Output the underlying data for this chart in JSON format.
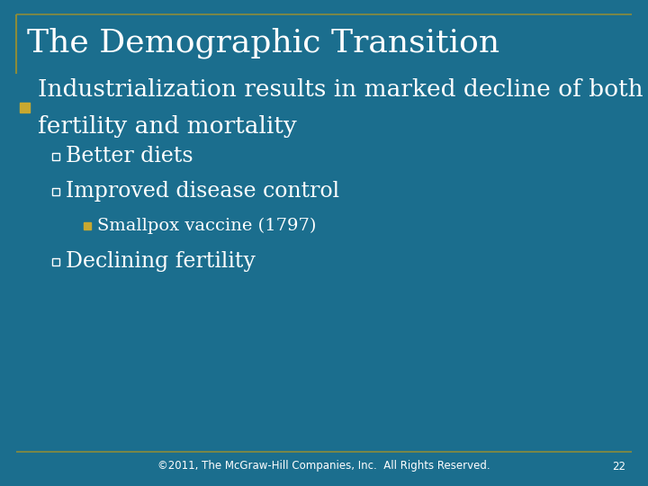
{
  "title": "The Demographic Transition",
  "background_color": "#1B6E8E",
  "title_color": "#FFFFFF",
  "text_color": "#FFFFFF",
  "accent_color": "#8B8B3A",
  "footer_text": "©2011, The McGraw-Hill Companies, Inc.  All Rights Reserved.",
  "page_number": "22",
  "bullet1_marker_color": "#C8A830",
  "bullet1_text_line1": "Industrialization results in marked decline of both",
  "bullet1_text_line2": "fertility and mortality",
  "sub_bullet1": "Better diets",
  "sub_bullet2": "Improved disease control",
  "sub_sub_bullet1": "Smallpox vaccine (1797)",
  "sub_bullet3": "Declining fertility",
  "title_font_size": 26,
  "bullet_font_size": 19,
  "sub_bullet_font_size": 17,
  "sub_sub_bullet_font_size": 14,
  "footer_font_size": 8.5
}
